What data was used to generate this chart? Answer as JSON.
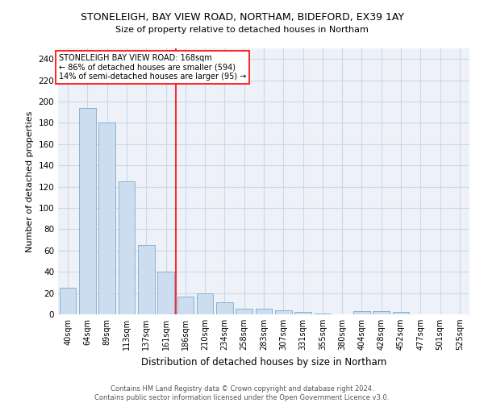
{
  "title": "STONELEIGH, BAY VIEW ROAD, NORTHAM, BIDEFORD, EX39 1AY",
  "subtitle": "Size of property relative to detached houses in Northam",
  "xlabel": "Distribution of detached houses by size in Northam",
  "ylabel": "Number of detached properties",
  "bar_color": "#ccddf0",
  "bar_edge_color": "#7aaad0",
  "categories": [
    "40sqm",
    "64sqm",
    "89sqm",
    "113sqm",
    "137sqm",
    "161sqm",
    "186sqm",
    "210sqm",
    "234sqm",
    "258sqm",
    "283sqm",
    "307sqm",
    "331sqm",
    "355sqm",
    "380sqm",
    "404sqm",
    "428sqm",
    "452sqm",
    "477sqm",
    "501sqm",
    "525sqm"
  ],
  "values": [
    25,
    194,
    180,
    125,
    65,
    40,
    17,
    20,
    11,
    5,
    5,
    4,
    2,
    1,
    0,
    3,
    3,
    2,
    0,
    0,
    0
  ],
  "ylim": [
    0,
    250
  ],
  "yticks": [
    0,
    20,
    40,
    60,
    80,
    100,
    120,
    140,
    160,
    180,
    200,
    220,
    240
  ],
  "property_line_x": 5.5,
  "property_line_label": "STONELEIGH BAY VIEW ROAD: 168sqm",
  "annotation_line1": "← 86% of detached houses are smaller (594)",
  "annotation_line2": "14% of semi-detached houses are larger (95) →",
  "footer_line1": "Contains HM Land Registry data © Crown copyright and database right 2024.",
  "footer_line2": "Contains public sector information licensed under the Open Government Licence v3.0.",
  "grid_color": "#c8d8ea",
  "background_color": "#eef2f8"
}
